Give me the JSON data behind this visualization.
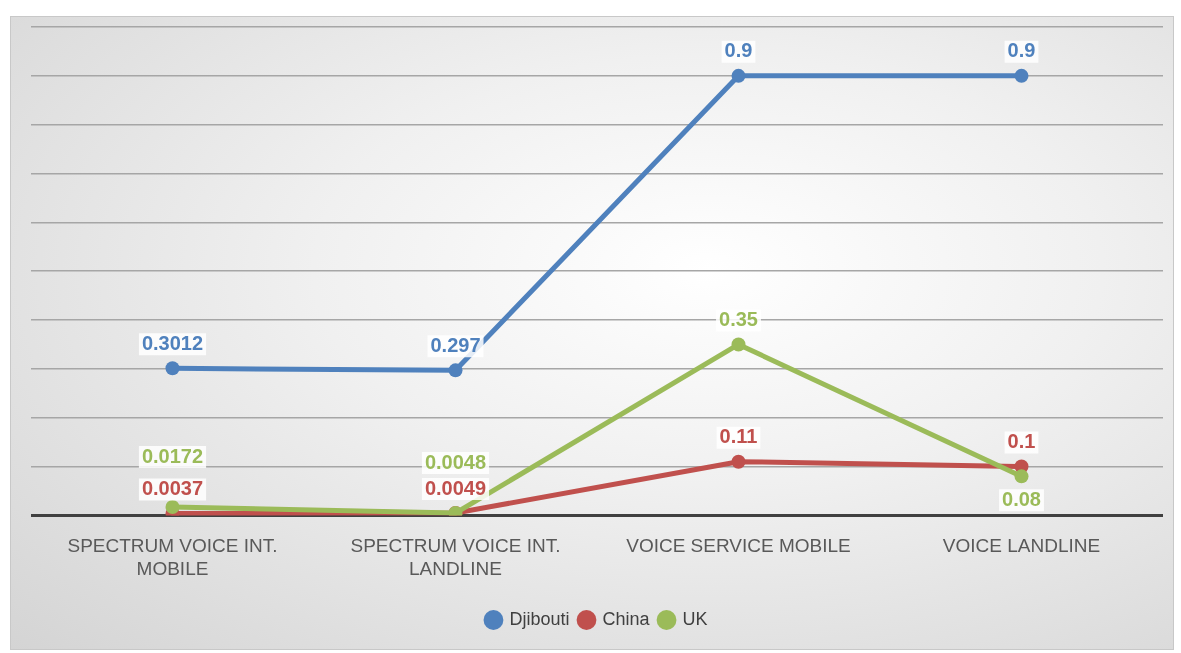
{
  "chart_data": {
    "type": "line",
    "categories": [
      "SPECTRUM VOICE INT. MOBILE",
      "SPECTRUM VOICE INT. LANDLINE",
      "VOICE SERVICE MOBILE",
      "VOICE LANDLINE"
    ],
    "series": [
      {
        "name": "Djibouti",
        "color": "#4f81bd",
        "values": [
          0.3012,
          0.297,
          0.9,
          0.9
        ]
      },
      {
        "name": "China",
        "color": "#c0504d",
        "values": [
          0.0037,
          0.0049,
          0.11,
          0.1
        ]
      },
      {
        "name": "UK",
        "color": "#9bbb59",
        "values": [
          0.0172,
          0.0048,
          0.35,
          0.08
        ]
      }
    ],
    "ylim": [
      0,
      1
    ],
    "yticks": [
      {
        "value": 0,
        "label": null
      },
      {
        "value": 0.1,
        "label": null
      },
      {
        "value": 0.2,
        "label": null
      },
      {
        "value": 0.3,
        "label": null
      },
      {
        "value": 0.4,
        "label": null
      },
      {
        "value": 0.5,
        "label": null
      },
      {
        "value": 0.6,
        "label": null
      },
      {
        "value": 0.7,
        "label": null
      },
      {
        "value": 0.8,
        "label": null
      },
      {
        "value": 0.9,
        "label": null
      },
      {
        "value": 1,
        "label": null
      }
    ],
    "tick_labels": "x",
    "grid": "y",
    "legend": "bottom",
    "marker": "circle",
    "line_style": "solid",
    "data_labels": true
  }
}
